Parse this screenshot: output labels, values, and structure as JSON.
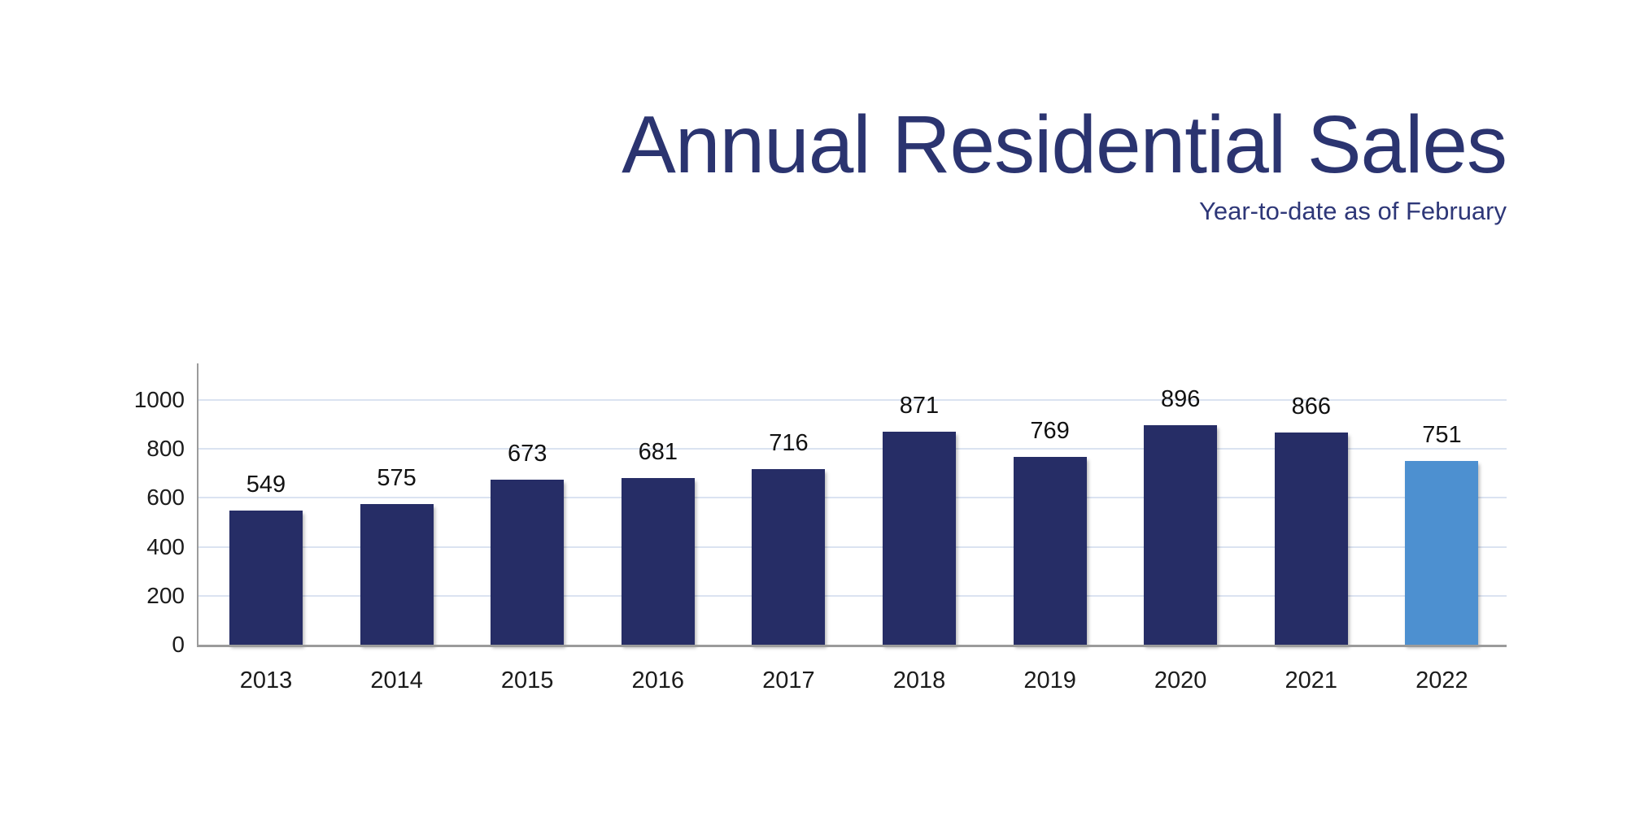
{
  "header": {
    "title": "Annual Residential Sales",
    "subtitle": "Year-to-date as of February"
  },
  "colors": {
    "title_navy": "#2b3470",
    "subtitle_navy": "#2e3778",
    "bar_navy": "#262d66",
    "bar_highlight_blue": "#4d90d0",
    "gridline": "#dbe3f1",
    "axis_gray": "#9b9b9b",
    "tick_label": "#1b1b1b",
    "value_label": "#111111",
    "background": "#ffffff"
  },
  "chart_data": {
    "type": "bar",
    "title": "Annual Residential Sales",
    "subtitle": "Year-to-date as of February",
    "categories": [
      "2013",
      "2014",
      "2015",
      "2016",
      "2017",
      "2018",
      "2019",
      "2020",
      "2021",
      "2022"
    ],
    "values": [
      549,
      575,
      673,
      681,
      716,
      871,
      769,
      896,
      866,
      751
    ],
    "data_labels_shown": true,
    "xlabel": "",
    "ylabel": "",
    "ylim": [
      0,
      1000
    ],
    "yticks": [
      0,
      200,
      400,
      600,
      800,
      1000
    ],
    "grid": true,
    "legend": "none",
    "highlight_index": 9,
    "highlight_note": "2022 bar rendered in light blue (year-to-date partial year); all other bars dark navy"
  }
}
